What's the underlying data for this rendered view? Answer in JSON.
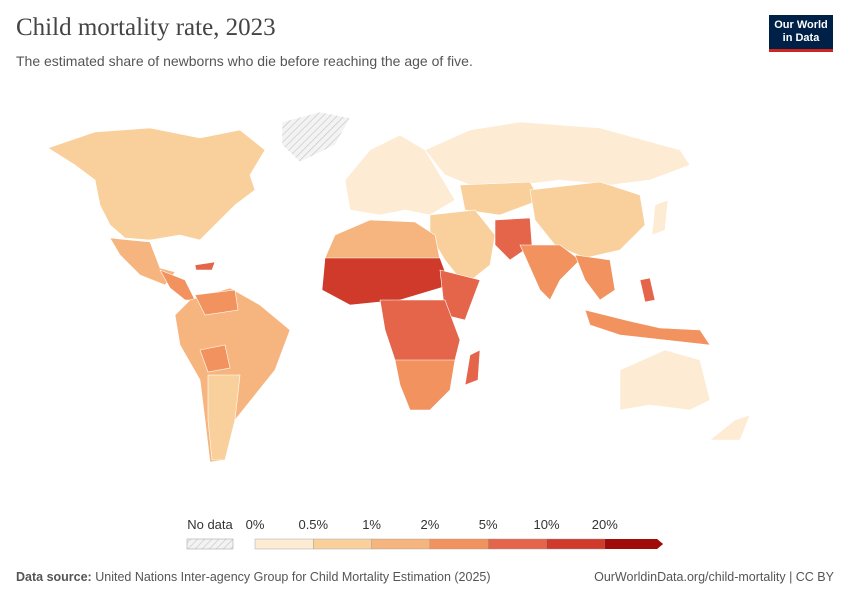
{
  "header": {
    "title": "Child mortality rate, 2023",
    "subtitle": "The estimated share of newborns who die before reaching the age of five.",
    "logo": [
      "Our World",
      "in Data"
    ]
  },
  "legend": {
    "no_data": "No data",
    "ticks": [
      "0%",
      "0.5%",
      "1%",
      "2%",
      "5%",
      "10%",
      "20%"
    ],
    "colors": [
      "#fdebd3",
      "#f9d09c",
      "#f6b57e",
      "#f2935f",
      "#e5654a",
      "#cf3a2a",
      "#a00c0a"
    ]
  },
  "footer": {
    "source_label": "Data source:",
    "source": "United Nations Inter-agency Group for Child Mortality Estimation (2025)",
    "url": "OurWorldinData.org/child-mortality | CC BY"
  }
}
